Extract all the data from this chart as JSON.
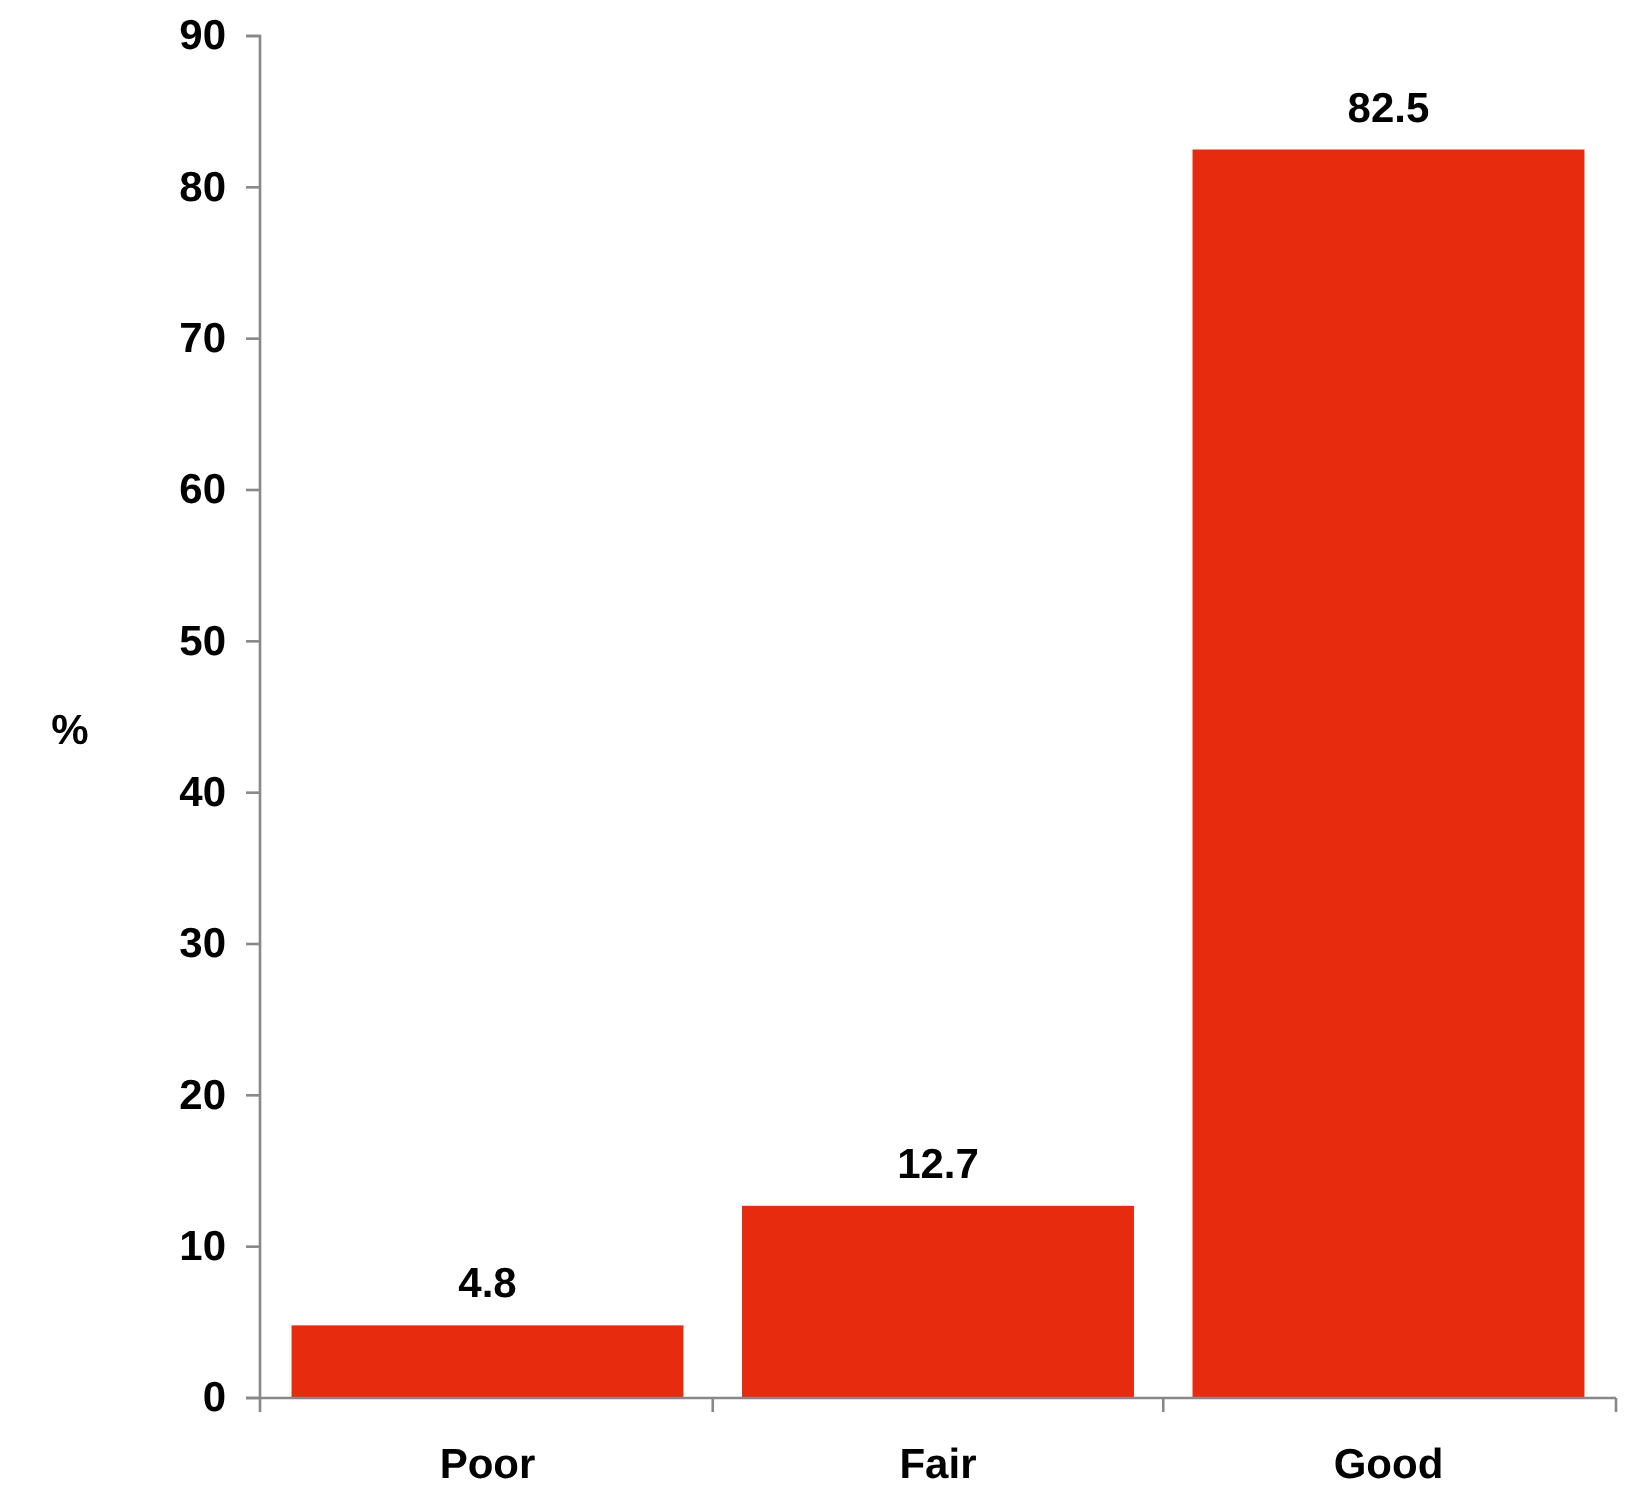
{
  "chart_data": {
    "type": "bar",
    "ylabel": "%",
    "categories": [
      "Poor",
      "Fair",
      "Good"
    ],
    "values": [
      4.8,
      12.7,
      82.5
    ],
    "color": "#e62b0f",
    "ylim": [
      0,
      90
    ],
    "yticks": [
      0,
      10,
      20,
      30,
      40,
      50,
      60,
      70,
      80,
      90
    ],
    "data_labels": true,
    "grid": false
  }
}
